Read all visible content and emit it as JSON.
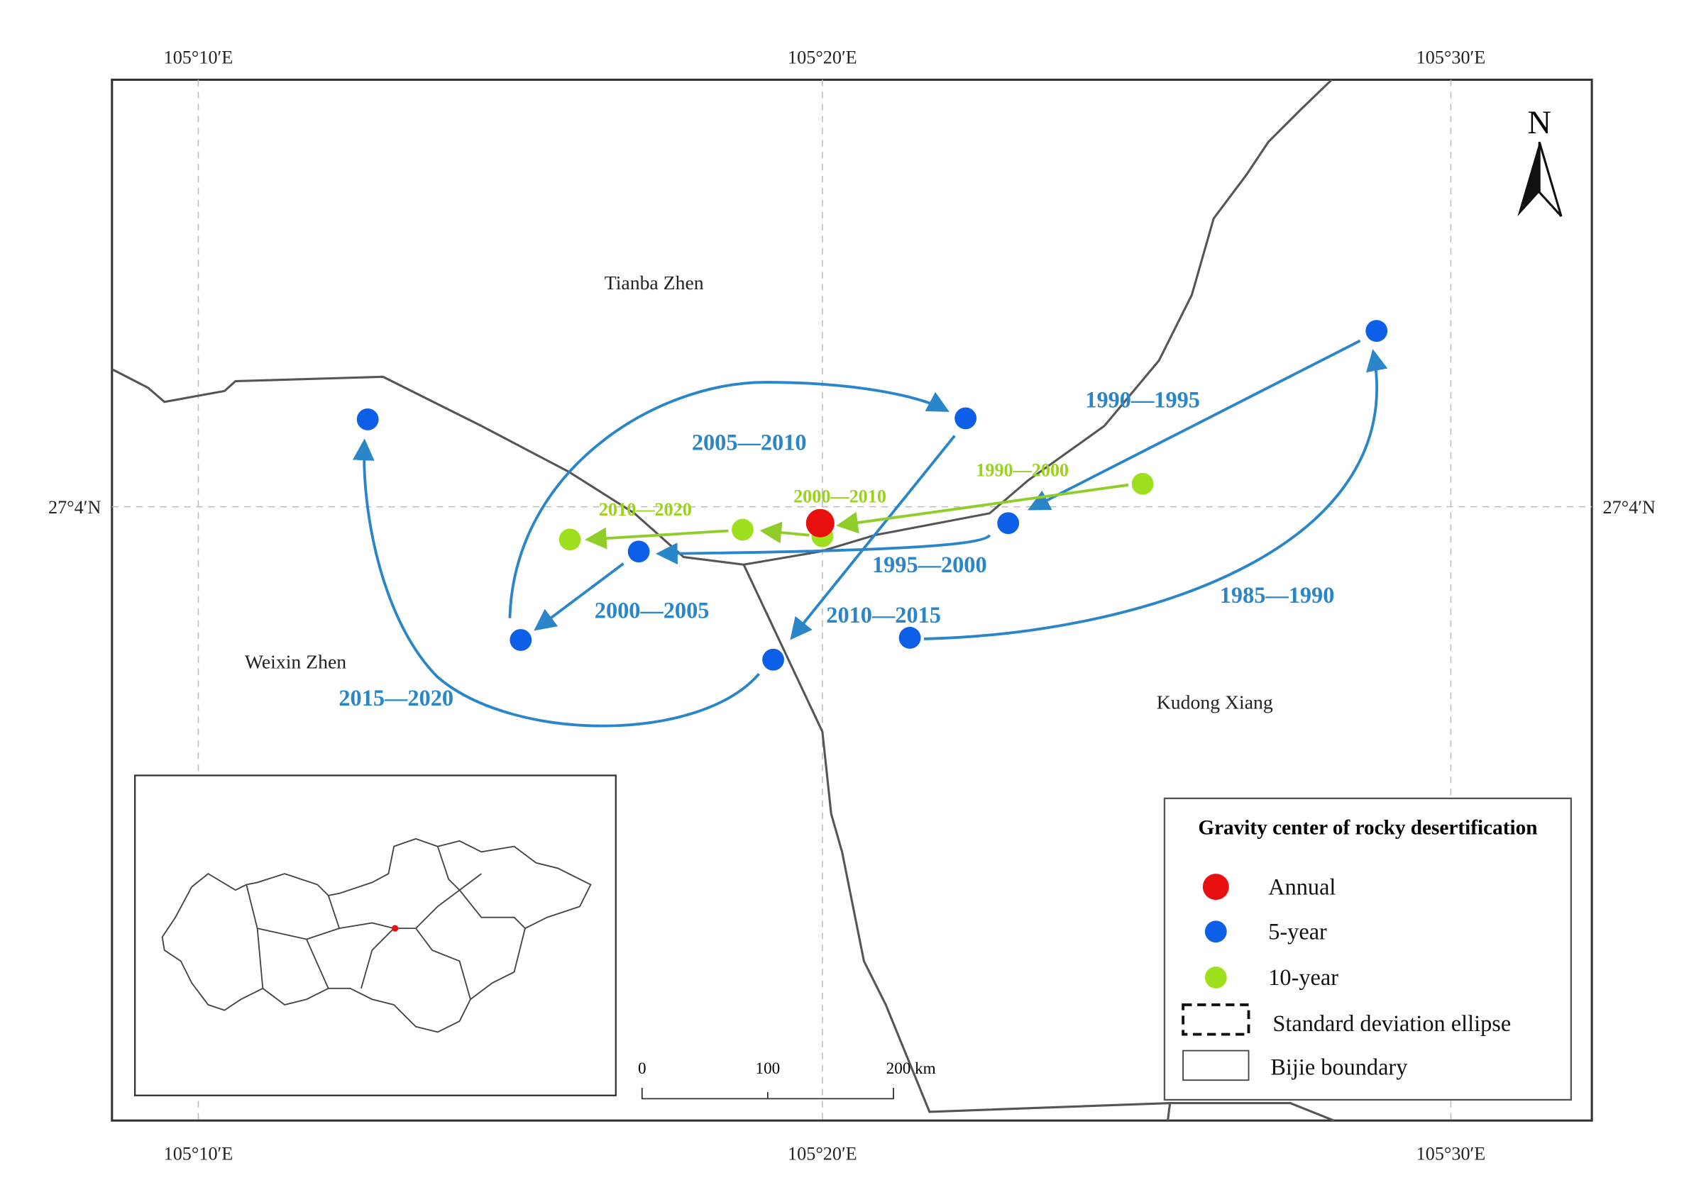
{
  "axes": {
    "top": [
      "105°10′E",
      "105°20′E",
      "105°30′E"
    ],
    "bottom": [
      "105°10′E",
      "105°20′E",
      "105°30′E"
    ],
    "left": "27°4′N",
    "right": "27°4′N"
  },
  "north": "N",
  "places": [
    "Tianba Zhen",
    "Weixin Zhen",
    "Kudong Xiang"
  ],
  "five_year_periods": [
    "1985—1990",
    "1990—1995",
    "1995—2000",
    "2000—2005",
    "2005—2010",
    "2010—2015",
    "2015—2020"
  ],
  "ten_year_periods": [
    "1990—2000",
    "2000—2010",
    "2010—2020"
  ],
  "scale_bar": [
    "0",
    "100",
    "200 km"
  ],
  "legend": {
    "title": "Gravity center of rocky desertification",
    "items": [
      "Annual",
      "5-year",
      "10-year",
      "Standard deviation ellipse",
      "Bijie boundary"
    ]
  }
}
